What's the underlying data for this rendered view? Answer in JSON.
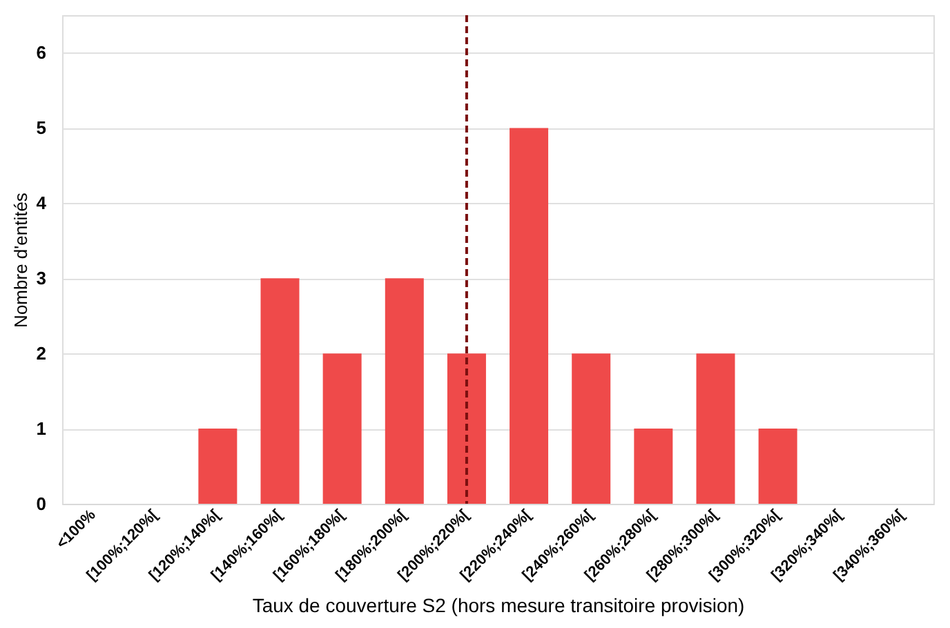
{
  "chart_data": {
    "type": "bar",
    "xlabel": "Taux de couverture S2 (hors mesure transitoire provision)",
    "ylabel": "Nombre d'entités",
    "categories": [
      "<100%",
      "[100%;120%[",
      "[120%;140%[",
      "[140%;160%[",
      "[160%;180%[",
      "[180%;200%[",
      "[200%;220%[",
      "[220%;240%[",
      "[240%;260%[",
      "[260%;280%[",
      "[280%;300%[",
      "[300%;320%[",
      "[320%;340%[",
      "[340%;360%["
    ],
    "values": [
      0,
      0,
      1,
      3,
      2,
      3,
      2,
      5,
      2,
      1,
      2,
      1,
      0,
      0
    ],
    "color": "#ef4a4a",
    "ylim": [
      0,
      6.5
    ],
    "yticks": [
      0,
      1,
      2,
      3,
      4,
      5,
      6
    ],
    "grid": "y",
    "ref_lines": [
      {
        "axis": "x",
        "value": "[200%;220%[",
        "color": "#7b1010",
        "line_style": "dashed"
      }
    ]
  }
}
